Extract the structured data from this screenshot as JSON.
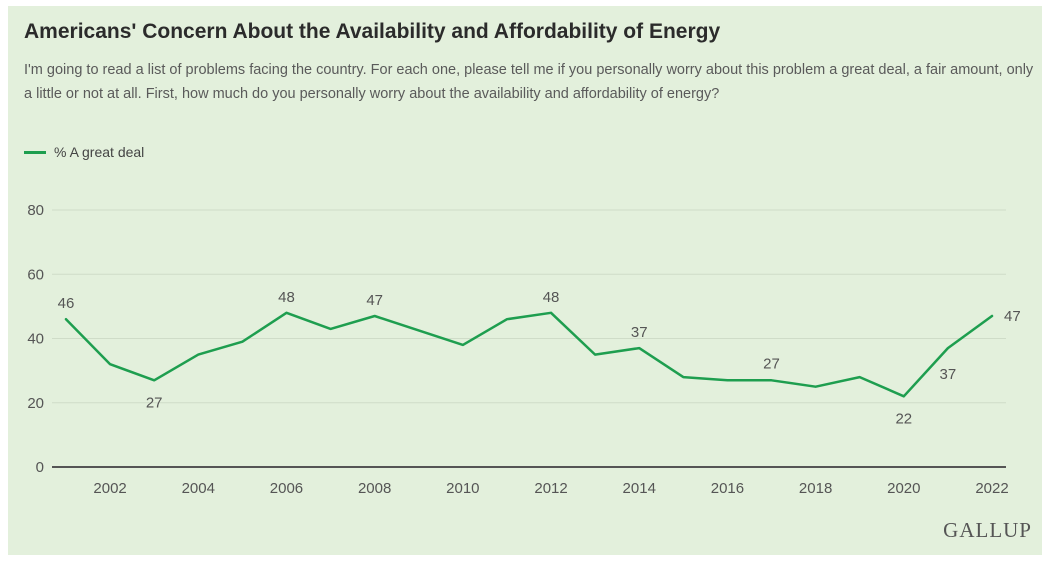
{
  "title": "Americans' Concern About the Availability and Affordability of Energy",
  "subtitle": "I'm going to read a list of problems facing the country. For each one, please tell me if you personally worry about this problem a great deal, a fair amount, only a little or not at all. First, how much do you personally worry about the availability and affordability of energy?",
  "brand": "GALLUP",
  "colors": {
    "line": "#1e9e4f",
    "grid": "#cfdcc8",
    "axis": "#555555",
    "background": "#e3f0dc"
  },
  "chart_data": {
    "type": "line",
    "title": "Americans' Concern About the Availability and Affordability of Energy",
    "x": [
      2001,
      2002,
      2003,
      2004,
      2005,
      2006,
      2007,
      2008,
      2010,
      2011,
      2012,
      2013,
      2014,
      2015,
      2016,
      2017,
      2018,
      2019,
      2020,
      2021,
      2022
    ],
    "series": [
      {
        "name": "% A great deal",
        "values": [
          46,
          32,
          27,
          35,
          39,
          48,
          43,
          47,
          38,
          46,
          48,
          35,
          37,
          28,
          27,
          27,
          25,
          28,
          22,
          37,
          47
        ]
      }
    ],
    "labeled_points": [
      {
        "x": 2001,
        "y": 46,
        "text": "46"
      },
      {
        "x": 2003,
        "y": 27,
        "text": "27"
      },
      {
        "x": 2006,
        "y": 48,
        "text": "48"
      },
      {
        "x": 2008,
        "y": 47,
        "text": "47"
      },
      {
        "x": 2012,
        "y": 48,
        "text": "48"
      },
      {
        "x": 2014,
        "y": 37,
        "text": "37"
      },
      {
        "x": 2017,
        "y": 27,
        "text": "27"
      },
      {
        "x": 2020,
        "y": 22,
        "text": "22"
      },
      {
        "x": 2021,
        "y": 37,
        "text": "37"
      },
      {
        "x": 2022,
        "y": 47,
        "text": "47"
      }
    ],
    "xticks": [
      "2002",
      "2004",
      "2006",
      "2008",
      "2010",
      "2012",
      "2014",
      "2016",
      "2018",
      "2020",
      "2022"
    ],
    "yticks": [
      "0",
      "20",
      "40",
      "60",
      "80"
    ],
    "xlim": [
      2001,
      2022
    ],
    "ylim": [
      0,
      80
    ],
    "grid": true,
    "legend_position": "top-left"
  }
}
